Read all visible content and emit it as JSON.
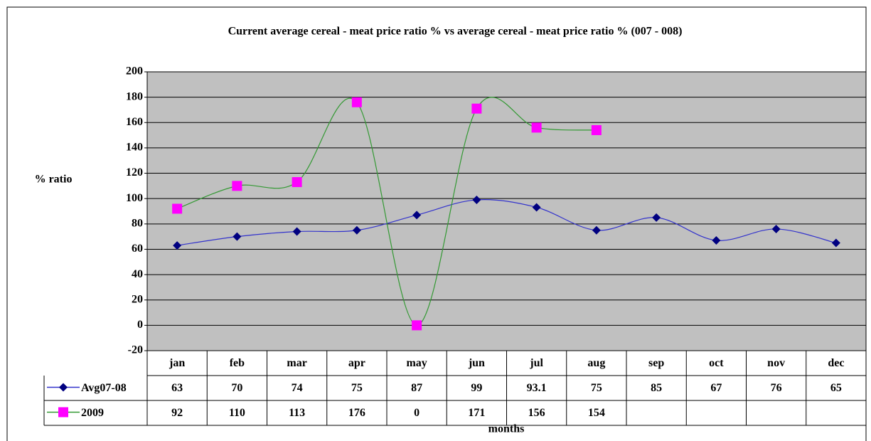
{
  "chart_data": {
    "type": "line",
    "title": "Current average cereal - meat price ratio % vs average cereal - meat price ratio % (007 - 008)",
    "ylabel": "% ratio",
    "xlabel": "months",
    "categories": [
      "jan",
      "feb",
      "mar",
      "apr",
      "may",
      "jun",
      "jul",
      "aug",
      "sep",
      "oct",
      "nov",
      "dec"
    ],
    "series": [
      {
        "name": "Avg07-08",
        "color": "#3333cc",
        "marker_color": "#000080",
        "marker": "diamond",
        "values": [
          63,
          70,
          74,
          75,
          87,
          99,
          93.1,
          75,
          85,
          67,
          76,
          65
        ]
      },
      {
        "name": "2009",
        "color": "#339933",
        "marker_color": "#ff00ff",
        "marker": "square",
        "values": [
          92,
          110,
          113,
          176,
          0,
          171,
          156,
          154,
          null,
          null,
          null,
          null
        ]
      }
    ],
    "smooth": true,
    "ylim": [
      -20,
      200
    ],
    "yticks": [
      -20,
      0,
      20,
      40,
      60,
      80,
      100,
      120,
      140,
      160,
      180,
      200
    ],
    "grid": true,
    "plot_background": "#c0c0c0"
  }
}
